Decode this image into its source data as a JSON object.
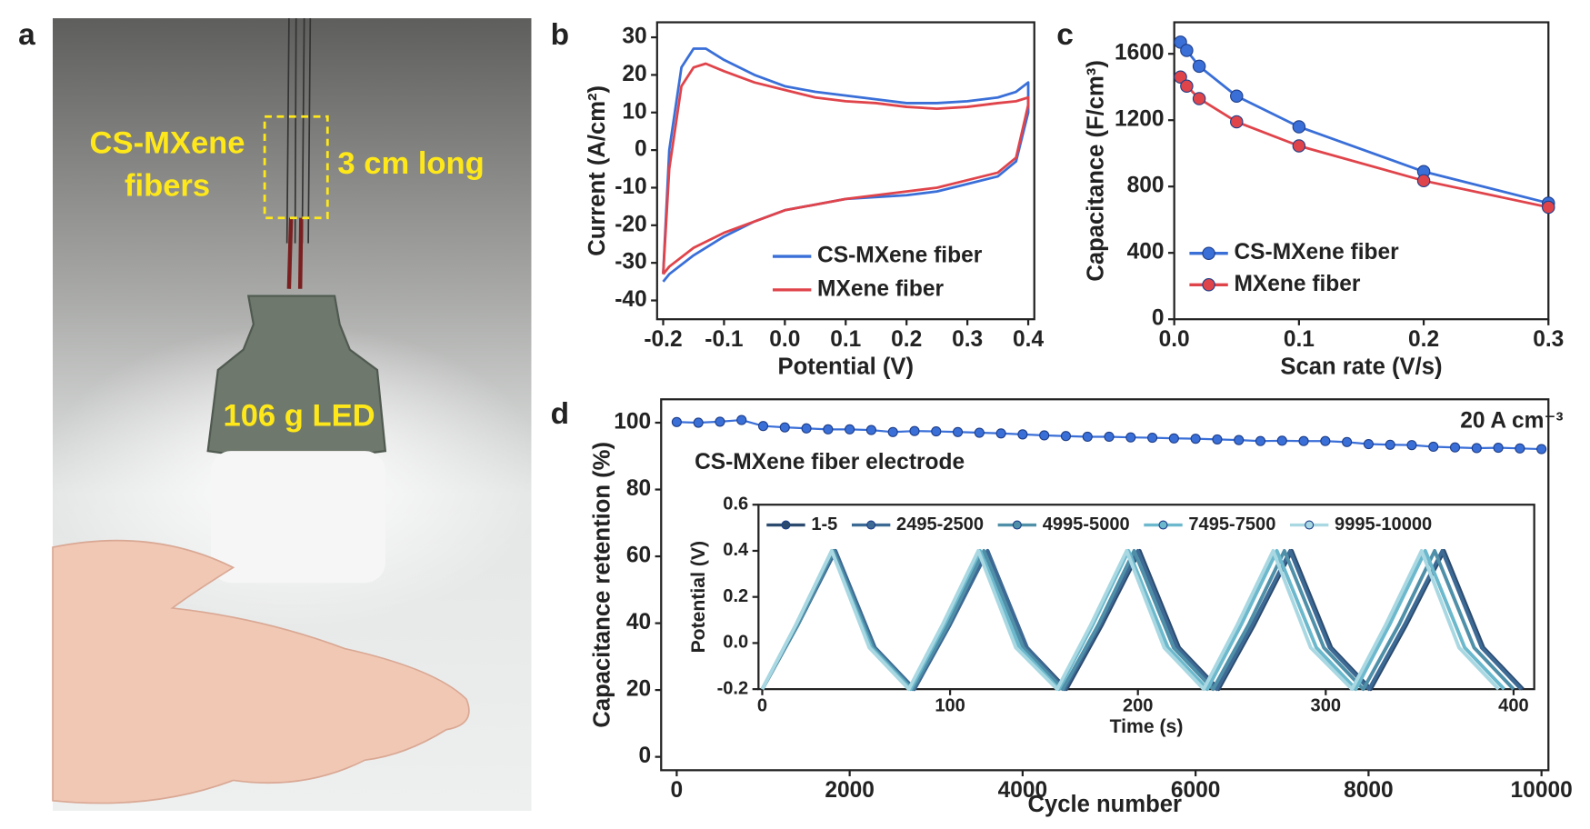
{
  "panel_labels": [
    "a",
    "b",
    "c",
    "d"
  ],
  "photo": {
    "fiber_label": [
      "CS-MXene",
      "fibers"
    ],
    "length_label": "3 cm long",
    "led_label": "106 g LED"
  },
  "chart_data": [
    {
      "type": "line",
      "xlabel": "Potential (V)",
      "ylabel": "Current (A/cm²)",
      "xlim": [
        -0.21,
        0.41
      ],
      "xticks": [
        -0.2,
        -0.1,
        {
          "value": 0,
          "label": "0.0"
        },
        0.1,
        0.2,
        0.3,
        0.4
      ],
      "ylim": [
        -45,
        34
      ],
      "yticks": [
        -40,
        -30,
        -20,
        -10,
        0,
        10,
        20,
        30
      ],
      "legend": "lower right",
      "markers": false,
      "legend_markers": false,
      "series": [
        {
          "name": "CS-MXene fiber",
          "color": "#3a6fd8",
          "x": [
            -0.2,
            -0.19,
            -0.17,
            -0.15,
            -0.13,
            -0.1,
            -0.05,
            0,
            0.05,
            0.1,
            0.15,
            0.2,
            0.25,
            0.3,
            0.35,
            0.38,
            0.4,
            0.4,
            0.38,
            0.35,
            0.3,
            0.25,
            0.2,
            0.1,
            0,
            -0.05,
            -0.1,
            -0.15,
            -0.19,
            -0.2
          ],
          "values": [
            -33,
            0,
            22,
            27,
            27,
            24,
            20,
            17,
            15.5,
            14.5,
            13.5,
            12.5,
            12.5,
            13,
            14,
            15.5,
            18,
            10,
            -3,
            -7,
            -9,
            -11,
            -12,
            -13,
            -16,
            -19,
            -23,
            -28,
            -33,
            -35
          ]
        },
        {
          "name": "MXene fiber",
          "color": "#e0444b",
          "x": [
            -0.2,
            -0.19,
            -0.17,
            -0.15,
            -0.13,
            -0.1,
            -0.05,
            0,
            0.05,
            0.1,
            0.15,
            0.2,
            0.25,
            0.3,
            0.35,
            0.38,
            0.4,
            0.4,
            0.38,
            0.35,
            0.3,
            0.25,
            0.2,
            0.1,
            0,
            -0.05,
            -0.1,
            -0.15,
            -0.19,
            -0.2
          ],
          "values": [
            -33,
            -5,
            17,
            22,
            23,
            21,
            18,
            16,
            14,
            13,
            12.5,
            11.5,
            11,
            11.5,
            12.5,
            13,
            14,
            12,
            -2,
            -6,
            -8,
            -10,
            -11,
            -13,
            -16,
            -19,
            -22,
            -26,
            -31,
            -33
          ]
        }
      ]
    },
    {
      "type": "line",
      "xlabel": "Scan rate (V/s)",
      "ylabel": "Capacitance (F/cm³)",
      "xlim": [
        0,
        0.3
      ],
      "xticks": [
        {
          "value": 0,
          "label": "0.0"
        },
        0.1,
        0.2,
        0.3
      ],
      "ylim": [
        0,
        1790
      ],
      "yticks": [
        0,
        400,
        800,
        1200,
        1600
      ],
      "legend": "lower left",
      "markers": true,
      "legend_markers": true,
      "x": [
        0.005,
        0.01,
        0.02,
        0.05,
        0.1,
        0.2,
        0.3
      ],
      "series": [
        {
          "name": "CS-MXene fiber",
          "color": "#3a6fd8",
          "values": [
            1670,
            1620,
            1525,
            1345,
            1160,
            890,
            700
          ]
        },
        {
          "name": "MXene fiber",
          "color": "#e0444b",
          "values": [
            1460,
            1405,
            1330,
            1190,
            1045,
            835,
            675
          ]
        }
      ]
    },
    {
      "type": "line",
      "xlabel": "Cycle number",
      "ylabel": "Capacitance retention (%)",
      "xlim": [
        -180,
        10080
      ],
      "xticks": [
        0,
        2000,
        4000,
        6000,
        8000,
        10000
      ],
      "ylim": [
        -4,
        107
      ],
      "yticks": [
        0,
        20,
        40,
        60,
        80,
        100
      ],
      "markers": true,
      "annotations": [
        "20 A cm⁻³",
        "CS-MXene fiber electrode"
      ],
      "x": [
        0,
        250,
        500,
        750,
        1000,
        1250,
        1500,
        1750,
        2000,
        2250,
        2500,
        2750,
        3000,
        3250,
        3500,
        3750,
        4000,
        4250,
        4500,
        4750,
        5000,
        5250,
        5500,
        5750,
        6000,
        6250,
        6500,
        6750,
        7000,
        7250,
        7500,
        7750,
        8000,
        8250,
        8500,
        8750,
        9000,
        9250,
        9500,
        9750,
        10000
      ],
      "series": [
        {
          "color": "#3a6fd8",
          "values": [
            100.2,
            100,
            100.3,
            100.8,
            99,
            98.6,
            98.3,
            98,
            98,
            97.8,
            97.2,
            97.5,
            97.4,
            97.2,
            97,
            96.8,
            96.5,
            96.2,
            96,
            95.8,
            95.8,
            95.6,
            95.5,
            95.3,
            95.2,
            95,
            94.8,
            94.5,
            94.6,
            94.5,
            94.5,
            94.2,
            93.6,
            93.4,
            93.3,
            92.8,
            92.6,
            92.4,
            92.5,
            92.3,
            92.1
          ]
        }
      ]
    },
    {
      "type": "line",
      "xlabel": "Time (s)",
      "ylabel": "Potential (V)",
      "xlim": [
        -2,
        411
      ],
      "xticks": [
        0,
        100,
        200,
        300,
        400
      ],
      "ylim": [
        -0.2,
        0.6
      ],
      "yticks": [
        -0.2,
        {
          "value": 0,
          "label": "0.0"
        },
        0.2,
        0.4,
        0.6
      ],
      "legend": "top",
      "markers": false,
      "legend_markers": true,
      "series": [
        {
          "name": "1-5",
          "color": "#2b4a6e",
          "x": [
            0,
            19,
            39,
            60,
            81,
            100,
            120,
            141,
            162,
            181,
            201,
            222,
            243,
            262,
            282,
            303,
            324,
            343,
            363,
            384,
            405
          ],
          "values": [
            -0.2,
            0.08,
            0.4,
            -0.02,
            -0.2,
            0.08,
            0.4,
            -0.02,
            -0.2,
            0.08,
            0.4,
            -0.02,
            -0.2,
            0.08,
            0.4,
            -0.02,
            -0.2,
            0.08,
            0.4,
            -0.02,
            -0.2
          ]
        },
        {
          "name": "2495-2500",
          "color": "#3d6a94",
          "x": [
            0,
            19,
            39,
            60,
            81,
            100,
            120,
            141,
            161,
            180,
            200,
            221,
            242,
            261,
            281,
            302,
            323,
            342,
            362,
            383,
            404
          ],
          "values": [
            -0.2,
            0.08,
            0.4,
            -0.02,
            -0.2,
            0.08,
            0.4,
            -0.02,
            -0.2,
            0.08,
            0.4,
            -0.02,
            -0.2,
            0.08,
            0.4,
            -0.02,
            -0.2,
            0.08,
            0.4,
            -0.02,
            -0.2
          ]
        },
        {
          "name": "4995-5000",
          "color": "#4f8fa8",
          "x": [
            0,
            19,
            38,
            59,
            80,
            99,
            118,
            139,
            160,
            179,
            198,
            219,
            240,
            259,
            278,
            299,
            320,
            339,
            358,
            379,
            400
          ],
          "values": [
            -0.2,
            0.08,
            0.4,
            -0.02,
            -0.2,
            0.08,
            0.4,
            -0.02,
            -0.2,
            0.08,
            0.4,
            -0.02,
            -0.2,
            0.08,
            0.4,
            -0.02,
            -0.2,
            0.08,
            0.4,
            -0.02,
            -0.2
          ]
        },
        {
          "name": "7495-7500",
          "color": "#6cb8cc",
          "x": [
            0,
            18,
            37,
            58,
            79,
            97,
            116,
            137,
            158,
            176,
            195,
            216,
            237,
            255,
            274,
            295,
            316,
            334,
            353,
            374,
            395
          ],
          "values": [
            -0.2,
            0.08,
            0.4,
            -0.02,
            -0.2,
            0.08,
            0.4,
            -0.02,
            -0.2,
            0.08,
            0.4,
            -0.02,
            -0.2,
            0.08,
            0.4,
            -0.02,
            -0.2,
            0.08,
            0.4,
            -0.02,
            -0.2
          ]
        },
        {
          "name": "9995-10000",
          "color": "#a9d8e2",
          "x": [
            0,
            18,
            37,
            57,
            78,
            96,
            115,
            135,
            157,
            175,
            194,
            214,
            235,
            253,
            272,
            292,
            314,
            332,
            351,
            371,
            392
          ],
          "values": [
            -0.2,
            0.08,
            0.4,
            -0.02,
            -0.2,
            0.08,
            0.4,
            -0.02,
            -0.2,
            0.08,
            0.4,
            -0.02,
            -0.2,
            0.08,
            0.4,
            -0.02,
            -0.2,
            0.08,
            0.4,
            -0.02,
            -0.2
          ]
        }
      ]
    }
  ]
}
